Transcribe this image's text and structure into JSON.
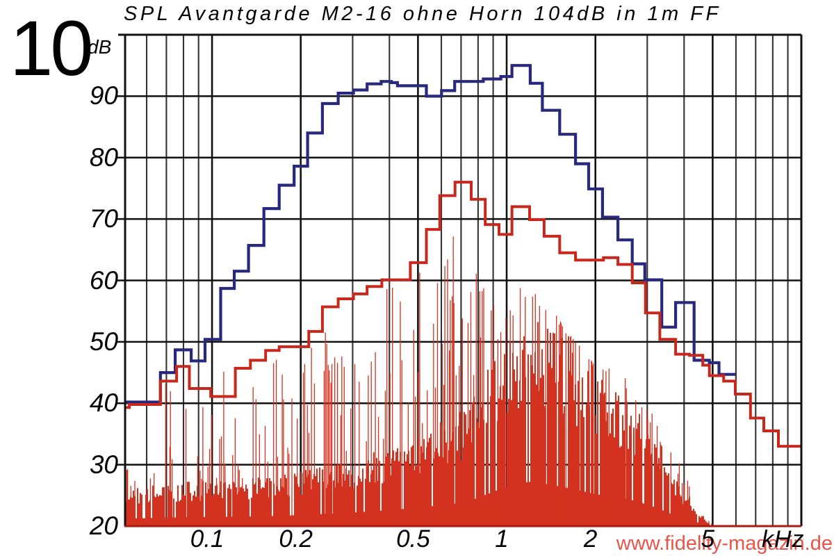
{
  "header": {
    "scale_label": "10",
    "unit_label": "dB",
    "title": "SPL Avantgarde M2-16 ohne Horn 104dB in 1m FF"
  },
  "watermark": {
    "text": "www.fidelity-magazin.de",
    "color": "#e8564a"
  },
  "colors": {
    "background": "#ffffff",
    "grid_minor": "#333333",
    "grid_major": "#111111",
    "frame": "#111111",
    "baseline_red": "#a81c12",
    "sweep_blue": "#28287f",
    "overlay_red": "#c8281c",
    "spectrum_red": "#d2321f"
  },
  "chart_data": {
    "type": "line",
    "title": "SPL Avantgarde M2-16 ohne Horn 104dB in 1m FF",
    "x_unit": "kHz",
    "x_scale": "log",
    "x_range_khz": [
      0.0507,
      10
    ],
    "y_range_db": [
      20,
      100
    ],
    "db_per_division": 10,
    "grid": true,
    "y_tick_values": [
      90,
      80,
      70,
      60,
      50,
      40,
      30,
      20
    ],
    "y_tick_labels": [
      "90",
      "80",
      "70",
      "60",
      "50",
      "40",
      "30",
      "20"
    ],
    "x_tick_values": [
      0.1,
      0.2,
      0.5,
      1,
      2,
      5
    ],
    "x_tick_labels": [
      "0.1",
      "0.2",
      "0.5",
      "1",
      "2",
      "5"
    ],
    "x_gridlines_khz": [
      0.06,
      0.07,
      0.08,
      0.09,
      0.1,
      0.2,
      0.3,
      0.4,
      0.5,
      0.6,
      0.7,
      0.8,
      0.9,
      1,
      2,
      3,
      4,
      5,
      6,
      7,
      8,
      9,
      10
    ],
    "series": [
      {
        "name": "SPL sweep fundamental",
        "color": "#28287f",
        "style": "steps",
        "line_width": 4.2,
        "end_khz": 5.97,
        "points": [
          [
            0.0507,
            40.2
          ],
          [
            0.0668,
            45.0
          ],
          [
            0.075,
            48.7
          ],
          [
            0.085,
            46.9
          ],
          [
            0.0947,
            50.4
          ],
          [
            0.107,
            58.7
          ],
          [
            0.119,
            61.5
          ],
          [
            0.133,
            65.7
          ],
          [
            0.15,
            71.7
          ],
          [
            0.169,
            75.5
          ],
          [
            0.19,
            78.6
          ],
          [
            0.211,
            84.0
          ],
          [
            0.237,
            88.8
          ],
          [
            0.268,
            90.5
          ],
          [
            0.302,
            91.0
          ],
          [
            0.336,
            92.0
          ],
          [
            0.375,
            92.4
          ],
          [
            0.406,
            92.2
          ],
          [
            0.426,
            91.7
          ],
          [
            0.534,
            90.0
          ],
          [
            0.601,
            90.9
          ],
          [
            0.666,
            92.4
          ],
          [
            0.833,
            92.8
          ],
          [
            0.955,
            93.2
          ],
          [
            1.042,
            95.0
          ],
          [
            1.202,
            92.1
          ],
          [
            1.322,
            87.7
          ],
          [
            1.513,
            83.8
          ],
          [
            1.713,
            79.0
          ],
          [
            1.898,
            74.9
          ],
          [
            2.114,
            70.3
          ],
          [
            2.385,
            66.6
          ],
          [
            2.668,
            62.7
          ],
          [
            2.944,
            60.1
          ],
          [
            3.361,
            52.4
          ],
          [
            3.744,
            56.4
          ],
          [
            4.326,
            47.0
          ],
          [
            4.874,
            46.6
          ],
          [
            5.254,
            44.7
          ]
        ]
      },
      {
        "name": "SPL distortion sum",
        "color": "#c8281c",
        "style": "steps",
        "line_width": 4.0,
        "end_khz": 10.0,
        "points": [
          [
            0.0507,
            39.3
          ],
          [
            0.0524,
            39.8
          ],
          [
            0.0668,
            43.6
          ],
          [
            0.0758,
            46.0
          ],
          [
            0.0838,
            42.4
          ],
          [
            0.099,
            41.1
          ],
          [
            0.12,
            45.7
          ],
          [
            0.135,
            47.0
          ],
          [
            0.152,
            48.6
          ],
          [
            0.169,
            49.2
          ],
          [
            0.213,
            51.7
          ],
          [
            0.237,
            55.7
          ],
          [
            0.268,
            57.0
          ],
          [
            0.302,
            57.8
          ],
          [
            0.336,
            59.0
          ],
          [
            0.377,
            60.1
          ],
          [
            0.471,
            62.9
          ],
          [
            0.534,
            68.3
          ],
          [
            0.593,
            73.8
          ],
          [
            0.668,
            76.0
          ],
          [
            0.758,
            73.2
          ],
          [
            0.846,
            69.1
          ],
          [
            0.942,
            67.5
          ],
          [
            1.042,
            72.0
          ],
          [
            1.196,
            69.9
          ],
          [
            1.34,
            67.2
          ],
          [
            1.513,
            64.5
          ],
          [
            1.713,
            63.3
          ],
          [
            2.13,
            63.7
          ],
          [
            2.385,
            62.6
          ],
          [
            2.668,
            59.6
          ],
          [
            2.958,
            54.7
          ],
          [
            3.31,
            50.4
          ],
          [
            3.744,
            48.0
          ],
          [
            4.17,
            47.8
          ],
          [
            4.63,
            46.2
          ],
          [
            4.874,
            44.5
          ],
          [
            5.45,
            43.6
          ],
          [
            5.97,
            41.5
          ],
          [
            6.72,
            37.6
          ],
          [
            7.46,
            35.5
          ],
          [
            8.36,
            33.0
          ]
        ]
      },
      {
        "name": "distortion spectrum",
        "color": "#d2321f",
        "style": "spikes",
        "start_khz": 0.051,
        "end_khz": 5.1,
        "envelope_max_db": [
          [
            0.051,
            30
          ],
          [
            0.055,
            28
          ],
          [
            0.06,
            33
          ],
          [
            0.065,
            35
          ],
          [
            0.07,
            46
          ],
          [
            0.075,
            41
          ],
          [
            0.08,
            40
          ],
          [
            0.09,
            39
          ],
          [
            0.1,
            44
          ],
          [
            0.11,
            46
          ],
          [
            0.13,
            47
          ],
          [
            0.15,
            47
          ],
          [
            0.17,
            49
          ],
          [
            0.2,
            50
          ],
          [
            0.24,
            52
          ],
          [
            0.28,
            54
          ],
          [
            0.33,
            57
          ],
          [
            0.4,
            62
          ],
          [
            0.47,
            64
          ],
          [
            0.55,
            66
          ],
          [
            0.62,
            68
          ],
          [
            0.66,
            69
          ],
          [
            0.72,
            68
          ],
          [
            0.78,
            64
          ],
          [
            0.85,
            60
          ],
          [
            0.95,
            57
          ],
          [
            1.05,
            58
          ],
          [
            1.15,
            59.5
          ],
          [
            1.25,
            59
          ],
          [
            1.4,
            56
          ],
          [
            1.6,
            52
          ],
          [
            1.8,
            49
          ],
          [
            2.0,
            46.5
          ],
          [
            2.3,
            45.5
          ],
          [
            2.6,
            44
          ],
          [
            3.0,
            40
          ],
          [
            3.3,
            36
          ],
          [
            3.6,
            33
          ],
          [
            4.0,
            29
          ],
          [
            4.3,
            26
          ],
          [
            4.6,
            23
          ],
          [
            4.8,
            21.5
          ],
          [
            5.1,
            20.3
          ]
        ],
        "envelope_dense_db": [
          [
            0.051,
            26
          ],
          [
            0.07,
            27
          ],
          [
            0.1,
            27.5
          ],
          [
            0.15,
            28
          ],
          [
            0.2,
            29
          ],
          [
            0.3,
            31
          ],
          [
            0.4,
            33
          ],
          [
            0.5,
            35
          ],
          [
            0.6,
            37
          ],
          [
            0.7,
            39
          ],
          [
            0.8,
            43
          ],
          [
            0.9,
            48
          ],
          [
            1.0,
            52
          ],
          [
            1.1,
            55
          ],
          [
            1.2,
            56
          ],
          [
            1.3,
            55
          ],
          [
            1.5,
            52.5
          ],
          [
            1.7,
            50
          ],
          [
            2.0,
            46
          ],
          [
            2.3,
            44
          ],
          [
            2.6,
            42
          ],
          [
            3.0,
            37.5
          ],
          [
            3.3,
            34
          ],
          [
            3.6,
            30
          ],
          [
            4.0,
            26
          ],
          [
            4.3,
            24
          ],
          [
            4.6,
            22
          ],
          [
            4.8,
            20.8
          ],
          [
            5.1,
            20.1
          ]
        ]
      }
    ]
  }
}
